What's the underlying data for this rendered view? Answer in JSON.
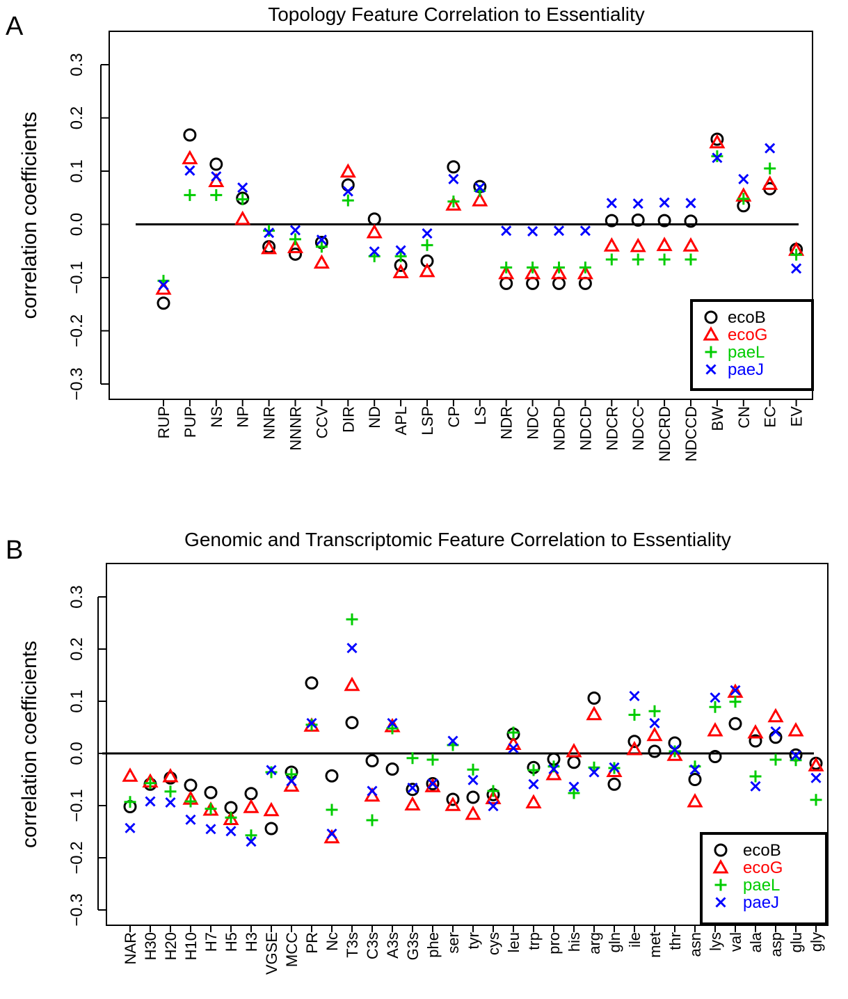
{
  "chart_data": [
    {
      "type": "scatter",
      "panel_label": "A",
      "title": "Topology Feature Correlation to Essentiality",
      "ylabel": "correlation coefficients",
      "ylim": [
        -0.3,
        0.3
      ],
      "yticks": [
        -0.3,
        -0.2,
        -0.1,
        0.0,
        0.1,
        0.2,
        0.3
      ],
      "ytick_labels": [
        "−0.3",
        "−0.2",
        "−0.1",
        "0.0",
        "0.1",
        "0.2",
        "0.3"
      ],
      "reference_line": 0,
      "legend_position": "bottom-right",
      "categories": [
        "RUP",
        "PUP",
        "NS",
        "NP",
        "NNR",
        "NNNR",
        "CCV",
        "DIR",
        "ND",
        "APL",
        "LSP",
        "CP",
        "LS",
        "NDR",
        "NDC",
        "NDRD",
        "NDCD",
        "NDCR",
        "NDCC",
        "NDCRD",
        "NDCCD",
        "BW",
        "CN",
        "EC",
        "EV"
      ],
      "series": [
        {
          "name": "ecoB",
          "marker": "circle",
          "color": "#000000",
          "values": [
            -0.148,
            0.168,
            0.113,
            0.049,
            -0.042,
            -0.056,
            -0.034,
            0.074,
            0.01,
            -0.077,
            -0.069,
            0.108,
            0.071,
            -0.111,
            -0.111,
            -0.111,
            -0.111,
            0.007,
            0.008,
            0.007,
            0.006,
            0.16,
            0.035,
            0.067,
            -0.047
          ]
        },
        {
          "name": "ecoG",
          "marker": "triangle",
          "color": "#ff0000",
          "values": [
            -0.121,
            0.124,
            0.081,
            0.01,
            -0.045,
            -0.043,
            -0.072,
            0.099,
            -0.015,
            -0.09,
            -0.088,
            0.037,
            0.045,
            -0.092,
            -0.092,
            -0.092,
            -0.092,
            -0.04,
            -0.041,
            -0.039,
            -0.04,
            0.154,
            0.054,
            0.076,
            -0.048
          ]
        },
        {
          "name": "paeL",
          "marker": "plus",
          "color": "#00cc00",
          "values": [
            -0.106,
            0.055,
            0.055,
            0.047,
            -0.012,
            -0.028,
            -0.042,
            0.045,
            -0.06,
            -0.06,
            -0.039,
            0.043,
            0.063,
            -0.081,
            -0.081,
            -0.081,
            -0.081,
            -0.066,
            -0.066,
            -0.066,
            -0.066,
            0.128,
            0.048,
            0.105,
            -0.057
          ]
        },
        {
          "name": "paeJ",
          "marker": "x",
          "color": "#0000ff",
          "values": [
            -0.114,
            0.101,
            0.09,
            0.069,
            -0.016,
            -0.011,
            -0.029,
            0.062,
            -0.051,
            -0.049,
            -0.017,
            0.085,
            0.069,
            -0.012,
            -0.013,
            -0.012,
            -0.012,
            0.04,
            0.039,
            0.041,
            0.04,
            0.125,
            0.085,
            0.143,
            -0.083
          ]
        }
      ]
    },
    {
      "type": "scatter",
      "panel_label": "B",
      "title": "Genomic and Transcriptomic Feature Correlation to Essentiality",
      "ylabel": "correlation coefficients",
      "ylim": [
        -0.3,
        0.3
      ],
      "yticks": [
        -0.3,
        -0.2,
        -0.1,
        0.0,
        0.1,
        0.2,
        0.3
      ],
      "ytick_labels": [
        "−0.3",
        "−0.2",
        "−0.1",
        "0.0",
        "0.1",
        "0.2",
        "0.3"
      ],
      "reference_line": 0,
      "legend_position": "bottom-right",
      "categories": [
        "NAR",
        "H30",
        "H20",
        "H10",
        "H7",
        "H5",
        "H3",
        "VGSE",
        "MCC",
        "PR",
        "Nc",
        "T3s",
        "C3s",
        "A3s",
        "G3s",
        "phe",
        "ser",
        "tyr",
        "cys",
        "leu",
        "trp",
        "pro",
        "his",
        "arg",
        "gln",
        "ile",
        "met",
        "thr",
        "asn",
        "lys",
        "val",
        "ala",
        "asp",
        "glu",
        "gly"
      ],
      "series": [
        {
          "name": "ecoB",
          "marker": "circle",
          "color": "#000000",
          "values": [
            -0.102,
            -0.059,
            -0.047,
            -0.061,
            -0.075,
            -0.104,
            -0.077,
            -0.144,
            -0.036,
            0.135,
            -0.043,
            0.059,
            -0.014,
            -0.03,
            -0.069,
            -0.058,
            -0.088,
            -0.084,
            -0.079,
            0.037,
            -0.027,
            -0.011,
            -0.017,
            0.106,
            -0.059,
            0.023,
            0.004,
            0.02,
            -0.05,
            -0.006,
            0.057,
            0.024,
            0.031,
            -0.003,
            -0.019
          ]
        },
        {
          "name": "ecoG",
          "marker": "triangle",
          "color": "#ff0000",
          "values": [
            -0.043,
            -0.054,
            -0.044,
            -0.087,
            -0.108,
            -0.126,
            -0.103,
            -0.109,
            -0.062,
            0.053,
            -0.161,
            0.131,
            -0.081,
            0.052,
            -0.098,
            -0.063,
            -0.099,
            -0.116,
            -0.086,
            0.018,
            -0.094,
            -0.04,
            0.004,
            0.075,
            -0.034,
            0.008,
            0.035,
            -0.003,
            -0.092,
            0.044,
            0.118,
            0.04,
            0.071,
            0.044,
            -0.023
          ]
        },
        {
          "name": "paeL",
          "marker": "plus",
          "color": "#00cc00",
          "values": [
            -0.093,
            -0.057,
            -0.073,
            -0.092,
            -0.106,
            -0.123,
            -0.157,
            -0.036,
            -0.04,
            0.055,
            -0.108,
            0.257,
            -0.128,
            0.048,
            -0.009,
            -0.012,
            0.016,
            -0.031,
            -0.072,
            0.04,
            -0.032,
            -0.025,
            -0.076,
            -0.027,
            -0.028,
            0.074,
            0.081,
            0.004,
            -0.025,
            0.089,
            0.099,
            -0.044,
            -0.012,
            -0.013,
            -0.089
          ]
        },
        {
          "name": "paeJ",
          "marker": "x",
          "color": "#0000ff",
          "values": [
            -0.143,
            -0.092,
            -0.094,
            -0.127,
            -0.145,
            -0.149,
            -0.169,
            -0.032,
            -0.053,
            0.058,
            -0.154,
            0.202,
            -0.072,
            0.058,
            -0.066,
            -0.058,
            0.024,
            -0.051,
            -0.101,
            0.01,
            -0.059,
            -0.03,
            -0.064,
            -0.036,
            -0.027,
            0.11,
            0.058,
            0.007,
            -0.031,
            0.107,
            0.121,
            -0.063,
            0.042,
            -0.004,
            -0.047
          ]
        }
      ]
    }
  ]
}
